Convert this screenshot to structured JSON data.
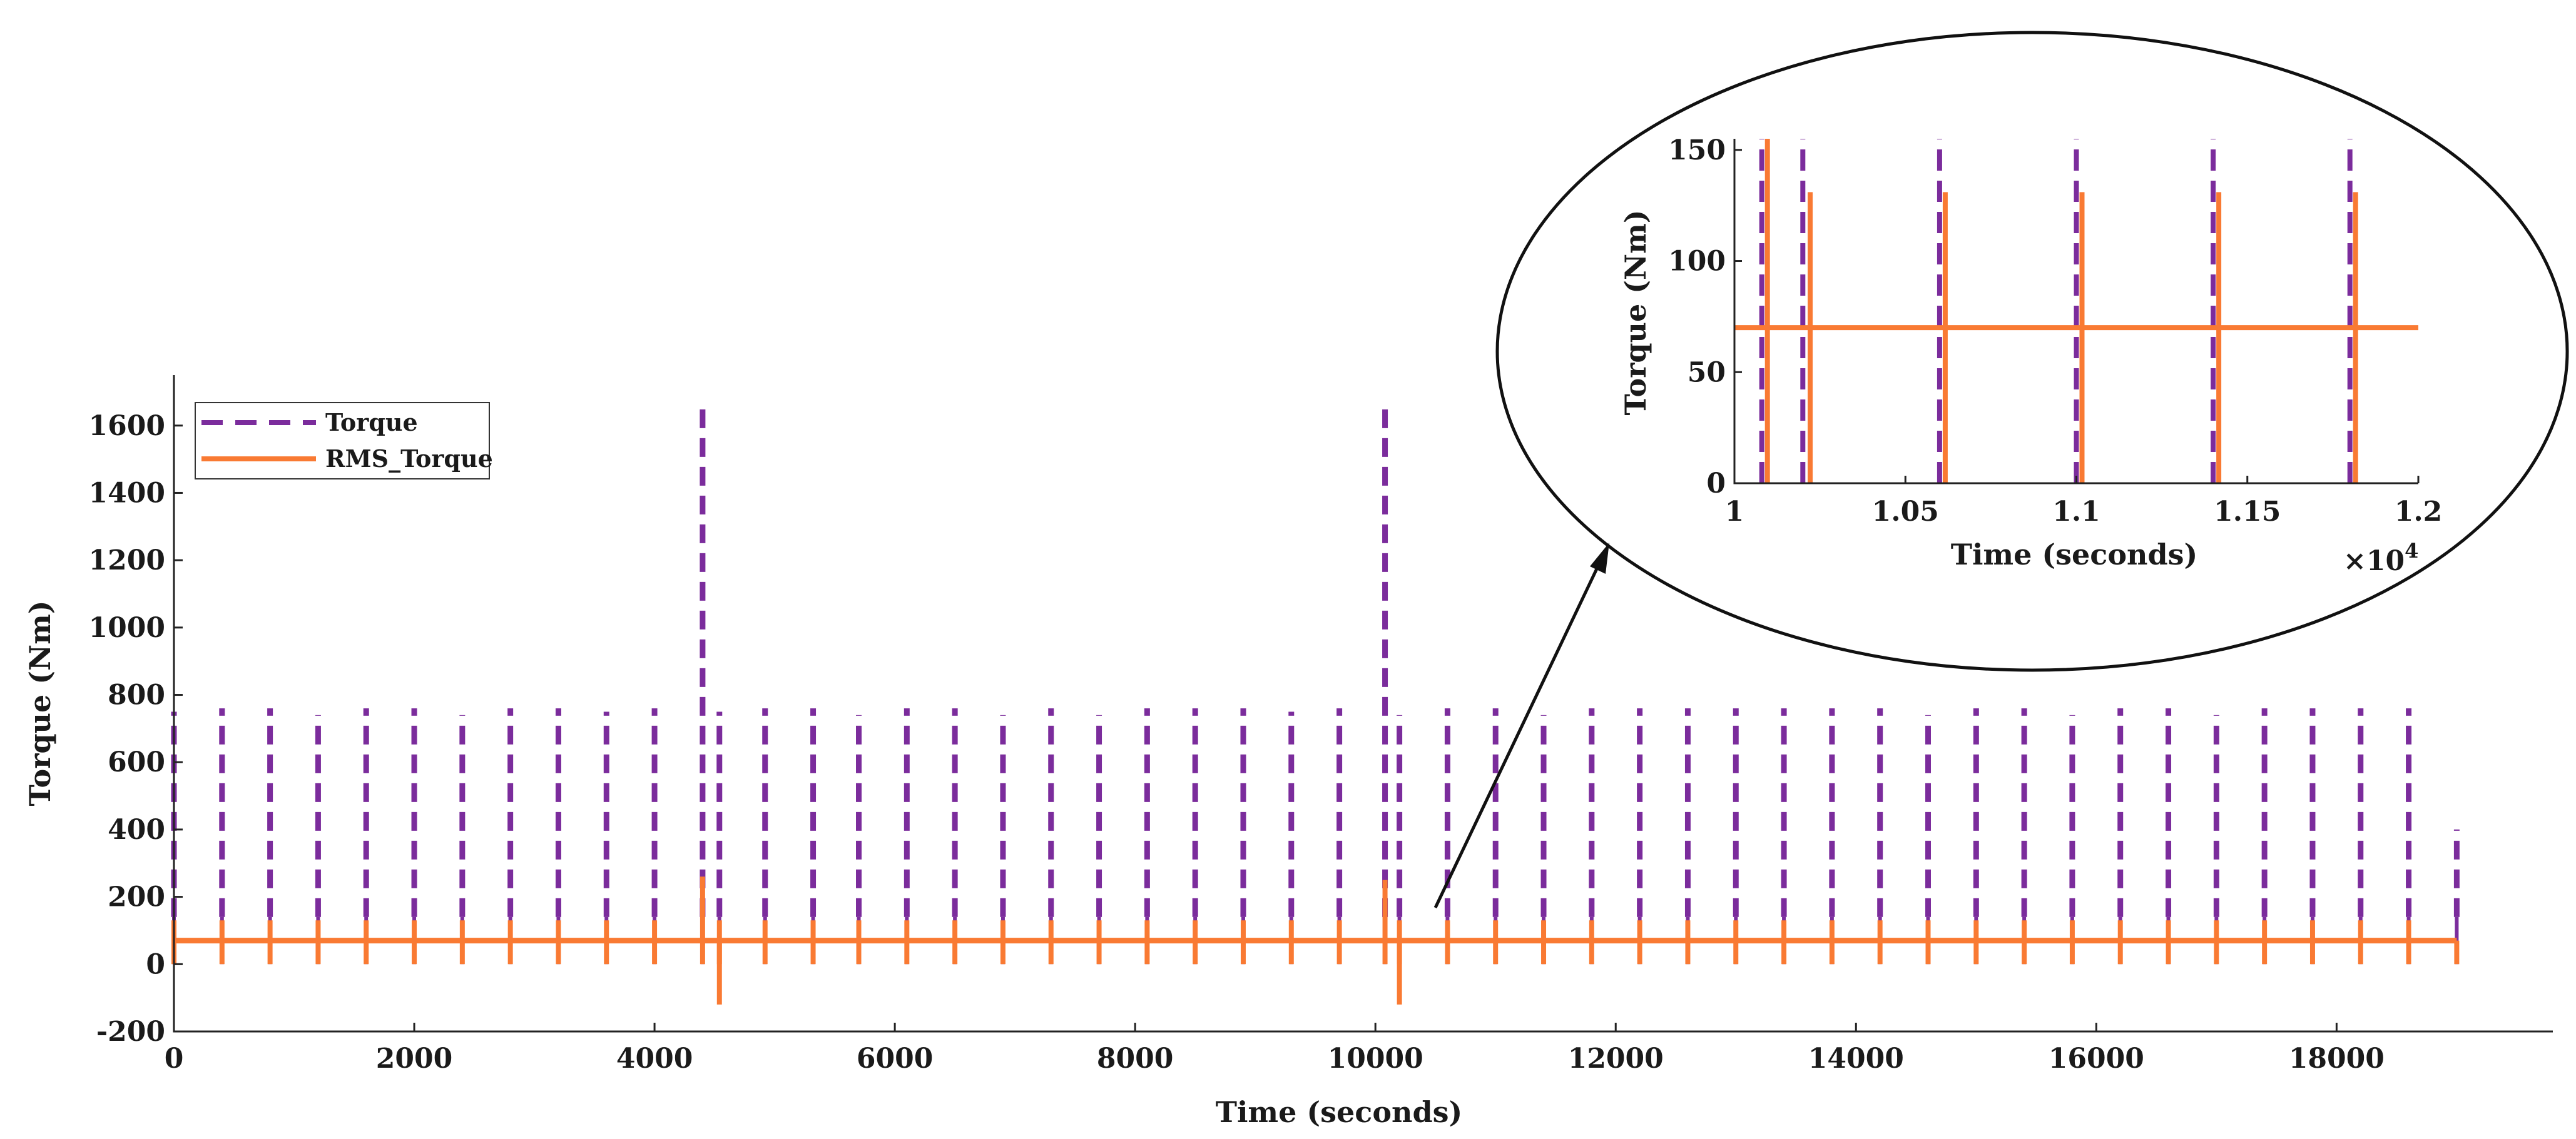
{
  "chart_data": [
    {
      "id": "main",
      "type": "line",
      "xlabel": "Time (seconds)",
      "ylabel": "Torque (Nm)",
      "xlim": [
        0,
        19800
      ],
      "ylim": [
        -200,
        1750
      ],
      "xticks": [
        0,
        2000,
        4000,
        6000,
        8000,
        10000,
        12000,
        14000,
        16000,
        18000
      ],
      "xtick_labels": [
        "0",
        "2000",
        "4000",
        "6000",
        "8000",
        "10000",
        "12000",
        "14000",
        "16000",
        "18000"
      ],
      "yticks": [
        -200,
        0,
        200,
        400,
        600,
        800,
        1000,
        1200,
        1400,
        1600
      ],
      "ytick_labels": [
        "-200",
        "0",
        "200",
        "400",
        "600",
        "800",
        "1000",
        "1200",
        "1400",
        "1600"
      ],
      "legend": [
        "Torque",
        "RMS_Torque"
      ],
      "legend_position": "top-left",
      "series": [
        {
          "name": "Torque",
          "style": "dashed",
          "color": "#7B2C9C",
          "spike_times": [
            0,
            400,
            800,
            1200,
            1600,
            2000,
            2400,
            2800,
            3200,
            3600,
            4000,
            4400,
            4540,
            4920,
            5320,
            5700,
            6100,
            6500,
            6900,
            7300,
            7700,
            8100,
            8500,
            8900,
            9300,
            9700,
            10080,
            10200,
            10600,
            11000,
            11400,
            11800,
            12200,
            12600,
            13000,
            13400,
            13800,
            14200,
            14600,
            15000,
            15400,
            15800,
            16200,
            16600,
            17000,
            17400,
            17800,
            18200,
            18600,
            19000
          ],
          "spike_peaks": [
            750,
            760,
            760,
            740,
            760,
            760,
            740,
            760,
            760,
            750,
            760,
            1660,
            750,
            760,
            760,
            740,
            760,
            760,
            740,
            760,
            740,
            760,
            760,
            760,
            750,
            760,
            1660,
            740,
            760,
            760,
            740,
            760,
            760,
            760,
            760,
            760,
            760,
            760,
            740,
            760,
            760,
            740,
            760,
            760,
            740,
            760,
            760,
            760,
            760,
            400
          ],
          "spike_base": 140
        },
        {
          "name": "RMS_Torque",
          "style": "solid",
          "color": "#F97A33",
          "baseline": 70,
          "spike_times": [
            0,
            400,
            800,
            1200,
            1600,
            2000,
            2400,
            2800,
            3200,
            3600,
            4000,
            4400,
            4540,
            4920,
            5320,
            5700,
            6100,
            6500,
            6900,
            7300,
            7700,
            8100,
            8500,
            8900,
            9300,
            9700,
            10080,
            10200,
            10600,
            11000,
            11400,
            11800,
            12200,
            12600,
            13000,
            13400,
            13800,
            14200,
            14600,
            15000,
            15400,
            15800,
            16200,
            16600,
            17000,
            17400,
            17800,
            18200,
            18600,
            19000
          ],
          "spike_peaks": [
            130,
            130,
            130,
            130,
            130,
            130,
            130,
            130,
            130,
            130,
            130,
            260,
            130,
            130,
            130,
            130,
            130,
            130,
            130,
            130,
            130,
            130,
            130,
            130,
            130,
            130,
            250,
            130,
            130,
            130,
            130,
            130,
            130,
            130,
            130,
            130,
            130,
            130,
            130,
            130,
            130,
            130,
            130,
            130,
            130,
            130,
            130,
            130,
            130,
            70
          ],
          "dips": [
            {
              "x": 4540,
              "y": -120
            },
            {
              "x": 10200,
              "y": -120
            }
          ]
        }
      ]
    },
    {
      "id": "inset",
      "type": "line",
      "xlabel": "Time (seconds)",
      "ylabel": "Torque (Nm)",
      "xlim": [
        1.0,
        1.2
      ],
      "ylim": [
        0,
        155
      ],
      "x_multiplier": "×10^4",
      "x_multiplier_base": "×10",
      "x_multiplier_exp": "4",
      "xticks": [
        1.0,
        1.05,
        1.1,
        1.15,
        1.2
      ],
      "xtick_labels": [
        "1",
        "1.05",
        "1.1",
        "1.15",
        "1.2"
      ],
      "yticks": [
        0,
        50,
        100,
        150
      ],
      "ytick_labels": [
        "0",
        "50",
        "100",
        "150"
      ],
      "series": [
        {
          "name": "Torque",
          "style": "dashed",
          "color": "#7B2C9C",
          "spike_times": [
            1.008,
            1.02,
            1.06,
            1.1,
            1.14,
            1.18
          ]
        },
        {
          "name": "RMS_Torque",
          "style": "solid",
          "color": "#F97A33",
          "baseline": 70,
          "spike_times": [
            1.008,
            1.0205,
            1.06,
            1.1,
            1.14,
            1.18
          ],
          "spike_peaks": [
            155,
            131,
            131,
            131,
            131,
            131
          ]
        }
      ]
    }
  ]
}
